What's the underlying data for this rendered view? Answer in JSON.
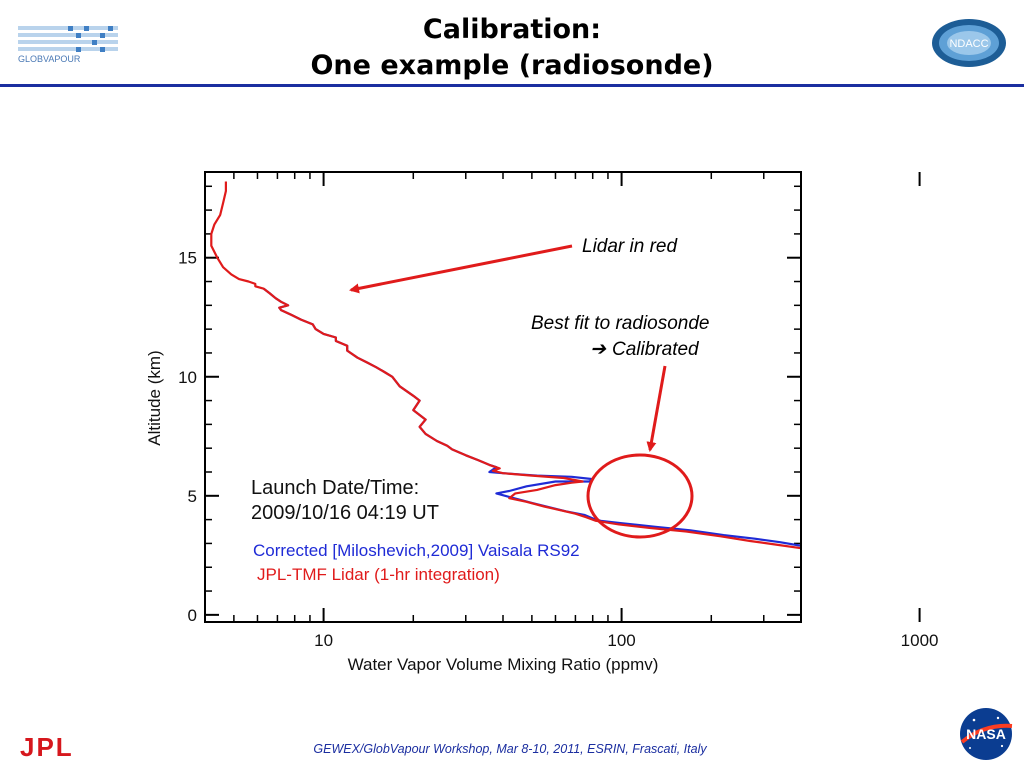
{
  "header": {
    "title_line1": "Calibration:",
    "title_line2": "One example (radiosonde)",
    "left_logo_text": "GLOBVAPOUR",
    "right_logo_text": "NDACC",
    "rule_color": "#1b2ea0"
  },
  "footer": {
    "text": "GEWEX/GlobVapour Workshop, Mar 8-10, 2011, ESRIN, Frascati, Italy",
    "left_logo_text": "JPL",
    "right_logo_text": "NASA"
  },
  "chart_data": {
    "type": "line",
    "xlabel": "Water Vapor Volume Mixing Ratio (ppmv)",
    "ylabel": "Altitude (km)",
    "xscale": "log",
    "xlim": [
      4,
      400
    ],
    "ylim": [
      -0.3,
      18.6
    ],
    "xticks": [
      10,
      100,
      1000
    ],
    "yticks": [
      0,
      5,
      10,
      15
    ],
    "grid": false,
    "colors": {
      "radiosonde": "#1f2bd6",
      "lidar": "#e01b1b"
    },
    "annotation_text": {
      "lidar_label": "Lidar in red",
      "fit_label_line1": "Best fit to radiosonde",
      "fit_label_line2": "Calibrated",
      "launch_line1": "Launch Date/Time:",
      "launch_line2": "2009/10/16 04:19 UT"
    },
    "series": [
      {
        "name": "Corrected [Miloshevich,2009] Vaisala RS92",
        "color": "#1f2bd6",
        "points": [
          [
            400,
            2.9
          ],
          [
            340,
            3.05
          ],
          [
            280,
            3.2
          ],
          [
            220,
            3.35
          ],
          [
            170,
            3.55
          ],
          [
            130,
            3.7
          ],
          [
            100,
            3.85
          ],
          [
            85,
            3.95
          ],
          [
            80,
            4.05
          ],
          [
            75,
            4.2
          ],
          [
            65,
            4.35
          ],
          [
            58,
            4.5
          ],
          [
            50,
            4.7
          ],
          [
            42,
            4.95
          ],
          [
            38,
            5.1
          ],
          [
            42,
            5.2
          ],
          [
            48,
            5.4
          ],
          [
            60,
            5.6
          ],
          [
            78,
            5.6
          ],
          [
            80,
            5.7
          ],
          [
            68,
            5.8
          ],
          [
            52,
            5.85
          ],
          [
            40,
            5.95
          ],
          [
            36,
            6.0
          ],
          [
            38,
            6.2
          ],
          [
            36,
            6.3
          ],
          [
            33,
            6.5
          ],
          [
            30,
            6.7
          ],
          [
            27,
            6.95
          ],
          [
            26,
            7.1
          ],
          [
            24,
            7.3
          ],
          [
            22,
            7.6
          ],
          [
            21,
            7.9
          ],
          [
            22,
            8.2
          ],
          [
            20,
            8.6
          ],
          [
            21,
            9.0
          ],
          [
            20,
            9.2
          ],
          [
            18,
            9.6
          ],
          [
            17,
            10.0
          ],
          [
            16,
            10.2
          ],
          [
            15,
            10.4
          ],
          [
            14,
            10.6
          ],
          [
            13,
            10.8
          ],
          [
            12,
            11.1
          ],
          [
            12,
            11.3
          ],
          [
            11,
            11.5
          ],
          [
            11,
            11.65
          ],
          [
            10,
            11.8
          ],
          [
            9.4,
            12.0
          ],
          [
            9.2,
            12.2
          ],
          [
            8.4,
            12.4
          ],
          [
            7.8,
            12.6
          ],
          [
            7.2,
            12.8
          ],
          [
            7.1,
            12.9
          ],
          [
            7.6,
            13.0
          ],
          [
            7.2,
            13.15
          ],
          [
            6.9,
            13.3
          ],
          [
            6.6,
            13.5
          ],
          [
            6.3,
            13.7
          ]
        ]
      },
      {
        "name": "JPL-TMF Lidar (1-hr integration)",
        "color": "#e01b1b",
        "points": [
          [
            400,
            2.8
          ],
          [
            330,
            2.95
          ],
          [
            270,
            3.1
          ],
          [
            215,
            3.3
          ],
          [
            165,
            3.5
          ],
          [
            125,
            3.65
          ],
          [
            98,
            3.8
          ],
          [
            82,
            3.95
          ],
          [
            76,
            4.1
          ],
          [
            70,
            4.25
          ],
          [
            62,
            4.4
          ],
          [
            55,
            4.55
          ],
          [
            48,
            4.75
          ],
          [
            42,
            4.9
          ],
          [
            44,
            5.1
          ],
          [
            52,
            5.25
          ],
          [
            60,
            5.45
          ],
          [
            68,
            5.55
          ],
          [
            74,
            5.6
          ],
          [
            64,
            5.75
          ],
          [
            50,
            5.85
          ],
          [
            40,
            5.95
          ],
          [
            37,
            6.05
          ],
          [
            39,
            6.15
          ],
          [
            36,
            6.3
          ],
          [
            33,
            6.5
          ],
          [
            30,
            6.7
          ],
          [
            27,
            6.95
          ],
          [
            26,
            7.1
          ],
          [
            24,
            7.3
          ],
          [
            22,
            7.6
          ],
          [
            21,
            7.9
          ],
          [
            22,
            8.2
          ],
          [
            20,
            8.6
          ],
          [
            21,
            9.0
          ],
          [
            20,
            9.2
          ],
          [
            18,
            9.6
          ],
          [
            17,
            10.0
          ],
          [
            16,
            10.2
          ],
          [
            15,
            10.4
          ],
          [
            14,
            10.6
          ],
          [
            13,
            10.8
          ],
          [
            12,
            11.1
          ],
          [
            12,
            11.3
          ],
          [
            11,
            11.5
          ],
          [
            11,
            11.65
          ],
          [
            10,
            11.8
          ],
          [
            9.4,
            12.0
          ],
          [
            9.2,
            12.2
          ],
          [
            8.4,
            12.4
          ],
          [
            7.8,
            12.6
          ],
          [
            7.2,
            12.8
          ],
          [
            7.1,
            12.9
          ],
          [
            7.6,
            13.0
          ],
          [
            7.2,
            13.15
          ],
          [
            6.9,
            13.3
          ],
          [
            6.6,
            13.5
          ],
          [
            6.3,
            13.7
          ],
          [
            5.9,
            13.8
          ],
          [
            5.9,
            13.9
          ],
          [
            5.6,
            14.0
          ],
          [
            5.2,
            14.1
          ],
          [
            4.9,
            14.3
          ],
          [
            4.6,
            14.6
          ],
          [
            4.4,
            15.0
          ],
          [
            4.2,
            15.5
          ],
          [
            4.2,
            16.0
          ],
          [
            4.3,
            16.4
          ],
          [
            4.5,
            16.8
          ],
          [
            4.6,
            17.3
          ],
          [
            4.7,
            17.8
          ],
          [
            4.7,
            18.2
          ]
        ]
      }
    ]
  }
}
